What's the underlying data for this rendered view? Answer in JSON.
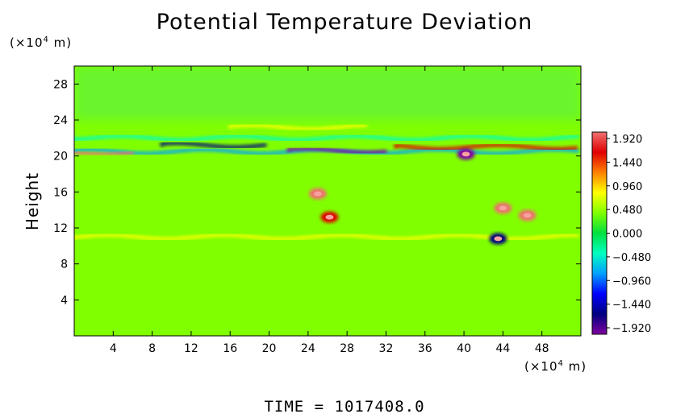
{
  "chart_data": {
    "type": "heatmap",
    "title": "Potential Temperature Deviation",
    "ylabel": "Height",
    "xlabel": "",
    "x_unit_prefix": "(×10",
    "x_unit_exp": "4",
    "x_unit_suffix": " m)",
    "y_unit_prefix": "(×10",
    "y_unit_exp": "4",
    "y_unit_suffix": " m)",
    "xlim": [
      0,
      52
    ],
    "ylim": [
      0,
      30
    ],
    "xticks": [
      4,
      8,
      12,
      16,
      20,
      24,
      28,
      32,
      36,
      40,
      44,
      48
    ],
    "yticks": [
      4,
      8,
      12,
      16,
      20,
      24,
      28
    ],
    "colorbar": {
      "range": [
        -1.92,
        1.92
      ],
      "labels": [
        "1.920",
        "1.440",
        "0.960",
        "0.480",
        "0.000",
        "−0.480",
        "−0.960",
        "−1.440",
        "−1.920"
      ],
      "stops": [
        "#f07070",
        "#e00000",
        "#ff8000",
        "#ffff00",
        "#80ff00",
        "#00e040",
        "#00ffc0",
        "#00a0ff",
        "#0000ff",
        "#000080",
        "#8000a0"
      ]
    },
    "background_value": 0.3,
    "features": [
      {
        "kind": "band",
        "y": 20.5,
        "x_start": 0,
        "x_end": 52,
        "value": -0.9,
        "note": "layer of alternating deviations"
      },
      {
        "kind": "band",
        "y": 20.6,
        "x_start": 22,
        "x_end": 32,
        "value": -1.92
      },
      {
        "kind": "band",
        "y": 21.2,
        "x_start": 9,
        "x_end": 20,
        "value": -1.6
      },
      {
        "kind": "band",
        "y": 20.4,
        "x_start": 0,
        "x_end": 6,
        "value": 1.9
      },
      {
        "kind": "band",
        "y": 21.0,
        "x_start": 33,
        "x_end": 52,
        "value": 1.7
      },
      {
        "kind": "band",
        "y": 23.2,
        "x_start": 16,
        "x_end": 30,
        "value": 0.9
      },
      {
        "kind": "band",
        "y": 22.0,
        "x_start": 0,
        "x_end": 52,
        "value": -0.4
      },
      {
        "kind": "band",
        "y": 11.0,
        "x_start": 0,
        "x_end": 52,
        "value": 0.9
      },
      {
        "kind": "blob",
        "x": 25.0,
        "y": 15.8,
        "value": 1.92
      },
      {
        "kind": "blob",
        "x": 26.2,
        "y": 13.2,
        "value": 1.7
      },
      {
        "kind": "blob",
        "x": 44.0,
        "y": 14.2,
        "value": 1.92
      },
      {
        "kind": "blob",
        "x": 46.5,
        "y": 13.4,
        "value": 1.8
      },
      {
        "kind": "blob",
        "x": 40.2,
        "y": 20.2,
        "value": -1.8
      },
      {
        "kind": "blob",
        "x": 43.5,
        "y": 10.8,
        "value": -1.4
      }
    ]
  },
  "time_label": "TIME  =  1017408.0"
}
